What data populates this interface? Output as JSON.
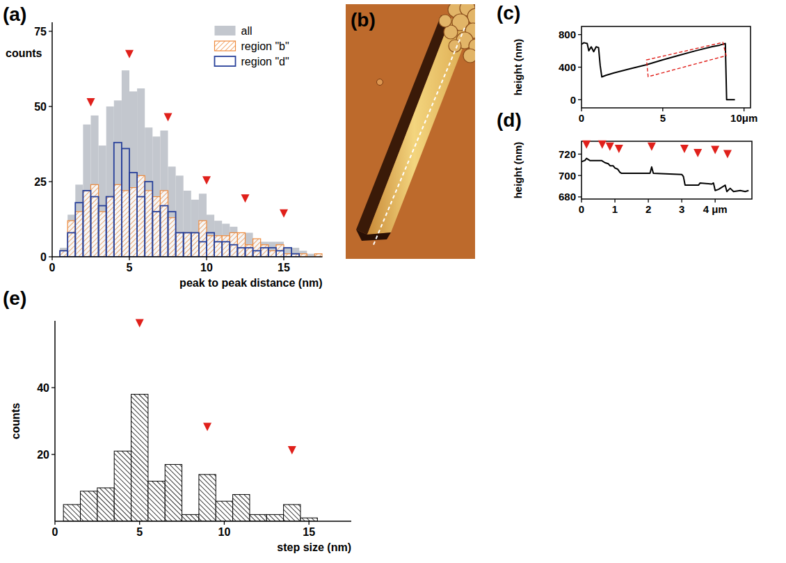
{
  "chart_data": [
    {
      "type": "histogram",
      "title": "(a)",
      "x_label": "peak to peak distance (nm)",
      "y_label": "counts",
      "bins": [
        0.5,
        1,
        1.5,
        2,
        2.5,
        3,
        3.5,
        4,
        4.5,
        5,
        5.5,
        6,
        6.5,
        7,
        7.5,
        8,
        8.5,
        9,
        9.5,
        10,
        10.5,
        11,
        11.5,
        12,
        12.5,
        13,
        13.5,
        14,
        14.5,
        15,
        15.5,
        16,
        16.5,
        17,
        17.5
      ],
      "series": [
        {
          "name": "all",
          "color": "#c3c7ce",
          "values": [
            3,
            14,
            24,
            44,
            47,
            37,
            50,
            52,
            62,
            55,
            56,
            43,
            40,
            42,
            30,
            27,
            22,
            19,
            21,
            14,
            12,
            11,
            10,
            8,
            8,
            6,
            5,
            5,
            5,
            3,
            3,
            2,
            1,
            1
          ]
        },
        {
          "name": "region \"b\"",
          "color": "#ee8a3c",
          "values": [
            2,
            12,
            15,
            22,
            24,
            15,
            20,
            24,
            22,
            23,
            27,
            22,
            20,
            22,
            13,
            8,
            8,
            8,
            12,
            7,
            7,
            7,
            8,
            8,
            4,
            6,
            4,
            2,
            4,
            1,
            1,
            1,
            0,
            1
          ]
        },
        {
          "name": "region \"d\"",
          "color": "#27409a",
          "values": [
            2,
            8,
            18,
            22,
            20,
            17,
            20,
            38,
            36,
            28,
            20,
            25,
            15,
            17,
            15,
            8,
            8,
            8,
            5,
            8,
            5,
            5,
            4,
            3,
            3,
            2,
            3,
            3,
            2,
            3,
            1,
            0,
            0,
            0
          ]
        }
      ],
      "xlim": [
        0,
        17.5
      ],
      "xticks": [
        0,
        5,
        10,
        15
      ],
      "ylim": [
        0,
        78
      ],
      "yticks": [
        0,
        25,
        50,
        75
      ],
      "legend": "top-right",
      "peaks": {
        "x": [
          2.5,
          5,
          7.5,
          10,
          12.5,
          15
        ],
        "y": [
          50,
          66,
          45,
          24,
          18,
          13
        ],
        "color": "#e0201b"
      }
    },
    {
      "type": "image",
      "title": "(b)"
    },
    {
      "type": "line",
      "title": "(c)",
      "y_label": "height (nm)",
      "color": "#000000",
      "x": [
        0,
        0.15,
        0.35,
        0.45,
        0.6,
        0.75,
        0.9,
        1.05,
        1.15,
        1.25,
        1.5,
        2,
        3,
        4,
        5,
        6,
        7,
        8,
        8.5,
        8.85,
        8.93,
        9.44
      ],
      "values": [
        680,
        700,
        690,
        600,
        650,
        590,
        650,
        640,
        420,
        280,
        300,
        330,
        380,
        430,
        490,
        545,
        600,
        650,
        670,
        690,
        0,
        0
      ],
      "xlim": [
        0,
        10.4
      ],
      "xticks": [
        0,
        5,
        {
          "value": 10,
          "label": "10μm"
        }
      ],
      "ylim": [
        -100,
        900
      ],
      "yticks": [
        0,
        400,
        800
      ],
      "region": {
        "x": [
          4.0,
          8.7,
          8.9,
          4.1
        ],
        "y": [
          489,
          704,
          541,
          283
        ],
        "color": "#e0201b"
      }
    },
    {
      "type": "line",
      "title": "(d)",
      "y_label": "height (nm)",
      "color": "#000000",
      "x": [
        0,
        0.1,
        0.15,
        0.25,
        0.6,
        0.7,
        0.8,
        0.86,
        0.95,
        1.0,
        1.08,
        1.15,
        1.2,
        2.05,
        2.1,
        2.15,
        3.0,
        3.05,
        3.1,
        3.5,
        3.55,
        3.9,
        3.95,
        4.0,
        4.1,
        4.2,
        4.3,
        4.35,
        4.45,
        4.55,
        4.75,
        4.9,
        5.0
      ],
      "values": [
        713,
        714,
        716,
        714,
        714,
        712,
        711,
        709,
        709,
        707,
        706,
        703,
        702,
        702,
        708,
        702,
        701,
        699,
        691,
        691,
        693,
        692,
        693,
        686,
        687,
        689,
        691,
        685,
        688,
        685,
        686,
        685,
        686
      ],
      "xlim": [
        0,
        5.1
      ],
      "xticks": [
        0,
        1,
        2,
        3,
        {
          "value": 4,
          "label": "4 μm"
        }
      ],
      "ylim": [
        678,
        732
      ],
      "yticks": [
        680,
        700,
        720
      ],
      "peaks": {
        "x": [
          0.15,
          0.62,
          0.85,
          1.12,
          2.1,
          3.08,
          3.48,
          4.0,
          4.37
        ],
        "y": [
          725,
          725,
          723,
          721,
          723,
          721,
          717,
          720,
          716
        ],
        "color": "#e0201b"
      }
    },
    {
      "type": "histogram",
      "title": "(e)",
      "x_label": "step size (nm)",
      "y_label": "counts",
      "color": "#000000",
      "bins": [
        0.5,
        1.5,
        2.5,
        3.5,
        4.5,
        5.5,
        6.5,
        7.5,
        8.5,
        9.5,
        10.5,
        11.5,
        12.5,
        13.5,
        14.5,
        15.5
      ],
      "values": [
        5,
        9,
        10,
        21,
        38,
        12,
        17,
        2,
        14,
        6,
        8,
        2,
        2,
        5,
        1
      ],
      "xlim": [
        0,
        17.5
      ],
      "xticks": [
        0,
        5,
        10,
        15
      ],
      "ylim": [
        0,
        60
      ],
      "yticks": [
        20,
        40
      ],
      "peaks": {
        "x": [
          5,
          9,
          14
        ],
        "y": [
          58,
          27,
          20
        ],
        "color": "#e0201b"
      }
    }
  ]
}
